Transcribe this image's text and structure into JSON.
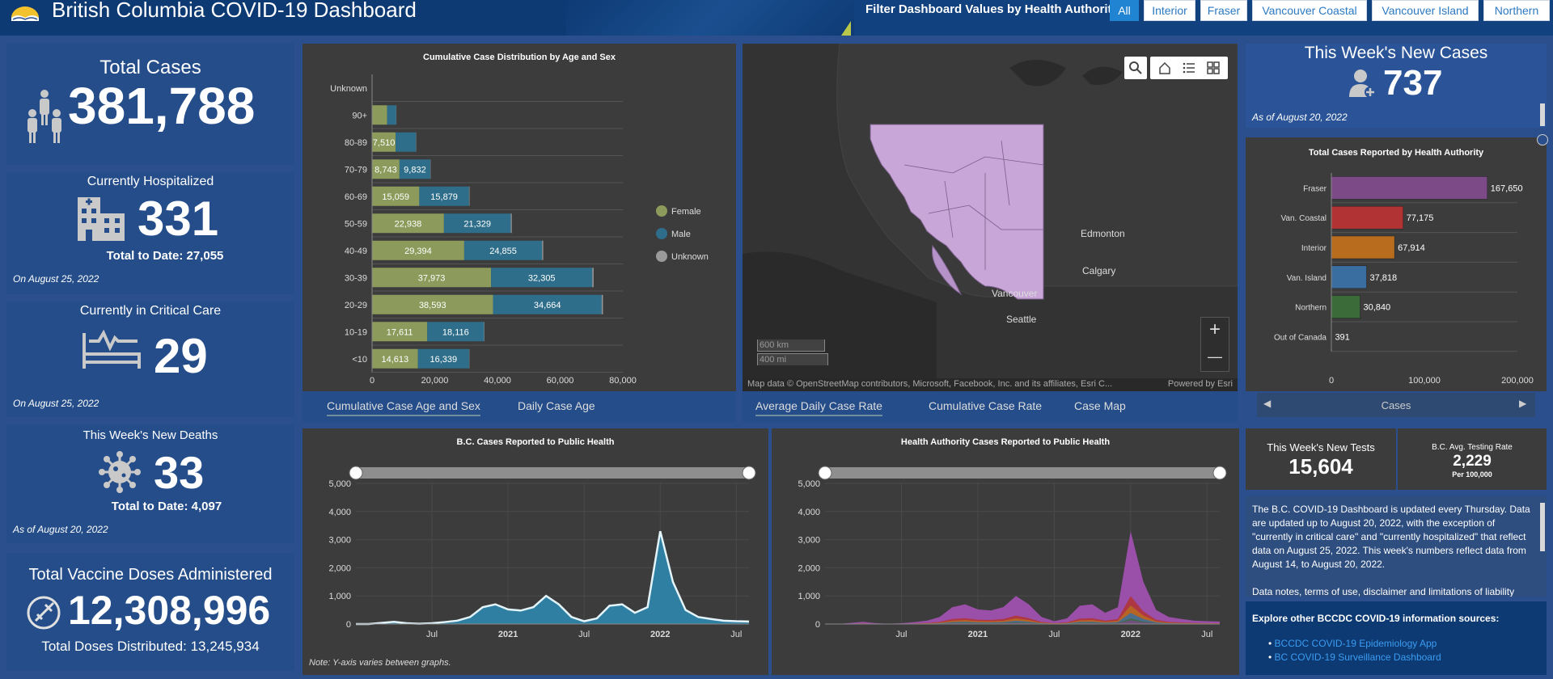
{
  "header": {
    "title": "British Columbia COVID-19 Dashboard",
    "filter_label": "Filter Dashboard Values by Health Authority:",
    "filters": [
      "All",
      "Interior",
      "Fraser",
      "Vancouver Coastal",
      "Vancouver Island",
      "Northern"
    ],
    "active_filter": "All"
  },
  "total_cases": {
    "label": "Total Cases",
    "value": "381,788"
  },
  "hospitalized": {
    "label": "Currently Hospitalized",
    "value": "331",
    "total": "Total to Date: 27,055",
    "date": "On August 25, 2022"
  },
  "critical": {
    "label": "Currently in Critical Care",
    "value": "29",
    "date": "On August 25, 2022"
  },
  "deaths": {
    "label": "This Week's New Deaths",
    "value": "33",
    "total": "Total to Date: 4,097",
    "date": "As of August 20, 2022"
  },
  "vaccine": {
    "label": "Total Vaccine Doses Administered",
    "value": "12,308,996",
    "distributed": "Total Doses Distributed: 13,245,934"
  },
  "new_cases": {
    "label": "This Week's New Cases",
    "value": "737",
    "date": "As of August 20, 2022"
  },
  "tests": {
    "label": "This Week's New Tests",
    "value": "15,604",
    "rate_label": "B.C. Avg. Testing Rate",
    "rate_value": "2,229",
    "rate_unit": "Per 100,000"
  },
  "age_tabs": [
    "Cumulative Case Age and Sex",
    "Daily Case Age"
  ],
  "map_tabs": [
    "Average Daily Case Rate",
    "Cumulative Case Rate",
    "Case Map"
  ],
  "ha_footer": "Cases",
  "map": {
    "labels": [
      "Edmonton",
      "Calgary",
      "Vancouver",
      "Seattle"
    ],
    "scale_km": "600 km",
    "scale_mi": "400 mi",
    "attribution": "Map data © OpenStreetMap contributors, Microsoft, Facebook, Inc. and its affiliates, Esri C...",
    "powered": "Powered by Esri",
    "zoom_in": "+",
    "zoom_out": "—"
  },
  "info": {
    "text": "The B.C. COVID-19 Dashboard is updated every Thursday. Data are updated up to August 20, 2022, with the exception of \"currently in critical care\" and \"currently hospitalized\" that reflect data on August 25, 2022. This week's numbers reflect data from August 14, to August 20, 2022.",
    "text2": "Data notes, terms of use, disclaimer and limitations of liability",
    "explore": "Explore other BCCDC COVID-19 information sources:",
    "links": [
      "BCCDC COVID-19 Epidemiology App",
      "BC COVID-19 Surveillance Dashboard"
    ]
  },
  "note": "Note: Y-axis varies between graphs.",
  "colors": {
    "female": "#8c9a5b",
    "male": "#2f6e8a",
    "unknown": "#9a9a9a",
    "fraser": "#7b4a87",
    "vancoastal": "#b23333",
    "interior": "#b86d1e",
    "vanisland": "#3b6ea0",
    "northern": "#3c6b3a"
  },
  "chart_data": [
    {
      "type": "bar",
      "title": "Cumulative Case Distribution by Age and Sex",
      "orientation": "horizontal",
      "stacked": true,
      "categories": [
        "Unknown",
        "90+",
        "80-89",
        "70-79",
        "60-69",
        "50-59",
        "40-49",
        "30-39",
        "20-29",
        "10-19",
        "<10"
      ],
      "series": [
        {
          "name": "Female",
          "values": [
            30,
            4800,
            7510,
            8743,
            15059,
            22938,
            29394,
            37973,
            38593,
            17611,
            14613
          ],
          "labels": [
            "",
            "",
            "7,510",
            "8,743",
            "15,059",
            "22,938",
            "29,394",
            "37,973",
            "38,593",
            "17,611",
            "14,613"
          ]
        },
        {
          "name": "Male",
          "values": [
            20,
            2900,
            6500,
            9832,
            15879,
            21329,
            24855,
            32305,
            34664,
            18116,
            16339
          ],
          "labels": [
            "",
            "",
            "",
            "9,832",
            "15,879",
            "21,329",
            "24,855",
            "32,305",
            "34,664",
            "18,116",
            "16,339"
          ]
        },
        {
          "name": "Unknown",
          "values": [
            0,
            60,
            80,
            90,
            150,
            300,
            350,
            400,
            400,
            120,
            90
          ]
        }
      ],
      "xlim": [
        0,
        80000
      ],
      "xticks": [
        "0",
        "20,000",
        "40,000",
        "60,000",
        "80,000"
      ],
      "legend": "right"
    },
    {
      "type": "bar",
      "title": "Total Cases Reported by Health Authority",
      "orientation": "horizontal",
      "categories": [
        "Fraser",
        "Van. Coastal",
        "Interior",
        "Van. Island",
        "Northern",
        "Out of Canada"
      ],
      "values": [
        167650,
        77175,
        67914,
        37818,
        30840,
        391
      ],
      "value_labels": [
        "167,650",
        "77,175",
        "67,914",
        "37,818",
        "30,840",
        "391"
      ],
      "xlim": [
        0,
        200000
      ],
      "xticks": [
        "0",
        "100,000",
        "200,000"
      ]
    },
    {
      "type": "area",
      "title": "B.C. Cases Reported to Public Health",
      "x_range": [
        "2020-01",
        "2022-08"
      ],
      "xticks": [
        "Jul",
        "2021",
        "Jul",
        "2022",
        "Jul"
      ],
      "ylim": [
        0,
        5000
      ],
      "yticks": [
        "0",
        "1,000",
        "2,000",
        "3,000",
        "4,000",
        "5,000"
      ],
      "monthly_avg": [
        0,
        0,
        40,
        80,
        30,
        10,
        30,
        70,
        120,
        250,
        600,
        700,
        520,
        480,
        600,
        1000,
        700,
        250,
        100,
        200,
        650,
        700,
        400,
        600,
        3300,
        1500,
        500,
        250,
        180,
        120,
        100,
        90
      ]
    },
    {
      "type": "area",
      "title": "Health Authority Cases Reported to Public Health",
      "stacked": true,
      "x_range": [
        "2020-01",
        "2022-08"
      ],
      "xticks": [
        "Jul",
        "2021",
        "Jul",
        "2022",
        "Jul"
      ],
      "ylim": [
        0,
        5000
      ],
      "yticks": [
        "0",
        "1,000",
        "2,000",
        "3,000",
        "4,000",
        "5,000"
      ],
      "series_names": [
        "Fraser",
        "Van. Coastal",
        "Interior",
        "Van. Island",
        "Northern"
      ],
      "monthly_total": [
        0,
        0,
        40,
        80,
        30,
        10,
        30,
        70,
        120,
        250,
        600,
        700,
        520,
        480,
        600,
        1000,
        700,
        250,
        100,
        200,
        650,
        700,
        400,
        600,
        3300,
        1500,
        500,
        250,
        180,
        120,
        100,
        90
      ]
    }
  ]
}
